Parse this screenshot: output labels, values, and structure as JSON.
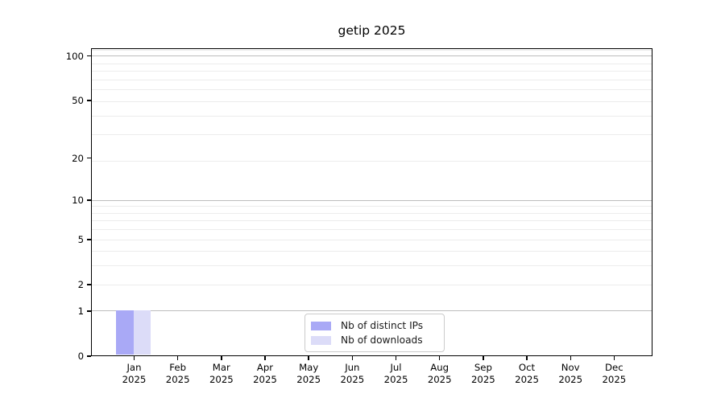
{
  "title": "getip 2025",
  "chart_data": {
    "type": "bar",
    "title": "getip 2025",
    "categories": [
      "Jan 2025",
      "Feb 2025",
      "Mar 2025",
      "Apr 2025",
      "May 2025",
      "Jun 2025",
      "Jul 2025",
      "Aug 2025",
      "Sep 2025",
      "Oct 2025",
      "Nov 2025",
      "Dec 2025"
    ],
    "series": [
      {
        "name": "Nb of distinct IPs",
        "color": "#a9a9f6",
        "values": [
          1,
          0,
          0,
          0,
          0,
          0,
          0,
          0,
          0,
          0,
          0,
          0
        ]
      },
      {
        "name": "Nb of downloads",
        "color": "#dcdcf8",
        "values": [
          1,
          0,
          0,
          0,
          0,
          0,
          0,
          0,
          0,
          0,
          0,
          0
        ]
      }
    ],
    "xlabel": "",
    "ylabel": "",
    "yscale": "log1p",
    "ylim": [
      0,
      113
    ],
    "ytick_values": [
      100,
      50,
      20,
      10,
      5,
      2,
      1,
      0
    ],
    "major_gridline_values": [
      1,
      10,
      100
    ],
    "minor_gridline_values": [
      2,
      3,
      4,
      5,
      6,
      7,
      8,
      9,
      19,
      29,
      39,
      49,
      59,
      69,
      79,
      89,
      109
    ],
    "grid": true,
    "legend_position": "lower center",
    "legend_border_color": "#cbcbcb",
    "text_color": "#000000",
    "major_grid_color": "#bdbdbd",
    "minor_grid_color": "#ececec"
  }
}
